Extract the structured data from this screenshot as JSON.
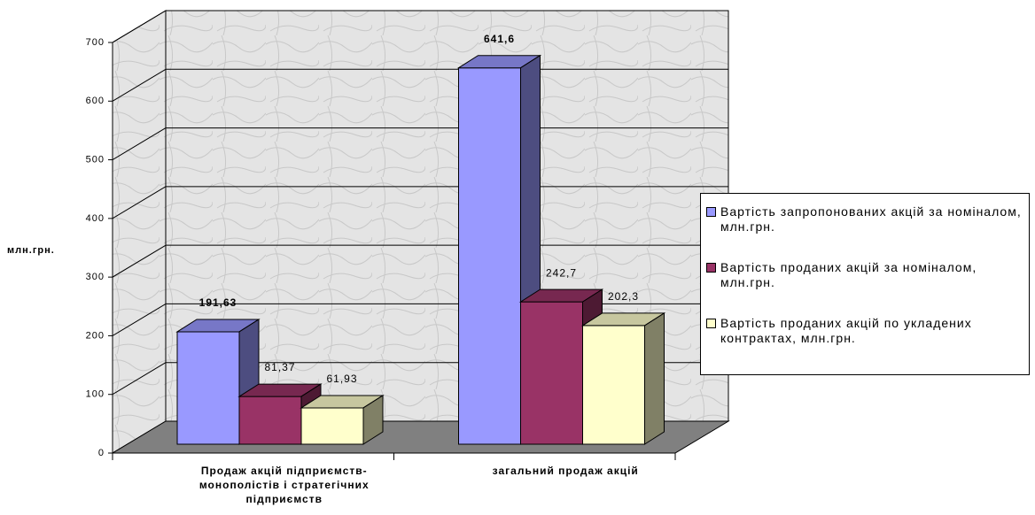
{
  "chart_data": {
    "type": "bar3d",
    "y_label": "млн.грн.",
    "categories": [
      "Продаж акцій підприємств-монополістів і стратегічних підприємств",
      "загальний продаж акцій"
    ],
    "series": [
      {
        "name": "Вартість запропонованих акцій за номіналом, млн.грн.",
        "color": "#9999ff",
        "values": [
          191.63,
          641.6
        ],
        "value_labels": [
          "191,63",
          "641,6"
        ]
      },
      {
        "name": "Вартість проданих акцій за номіналом, млн.грн.",
        "color": "#993366",
        "values": [
          81.37,
          242.7
        ],
        "value_labels": [
          "81,37",
          "242,7"
        ]
      },
      {
        "name": "Вартість проданих акцій по укладених контрактах, млн.грн.",
        "color": "#ffffcc",
        "values": [
          61.93,
          202.3
        ],
        "value_labels": [
          "61,93",
          "202,3"
        ]
      }
    ],
    "ylim": [
      0,
      700
    ],
    "yticks": [
      0,
      100,
      200,
      300,
      400,
      500,
      600,
      700
    ],
    "grid": true,
    "legend": "right"
  }
}
